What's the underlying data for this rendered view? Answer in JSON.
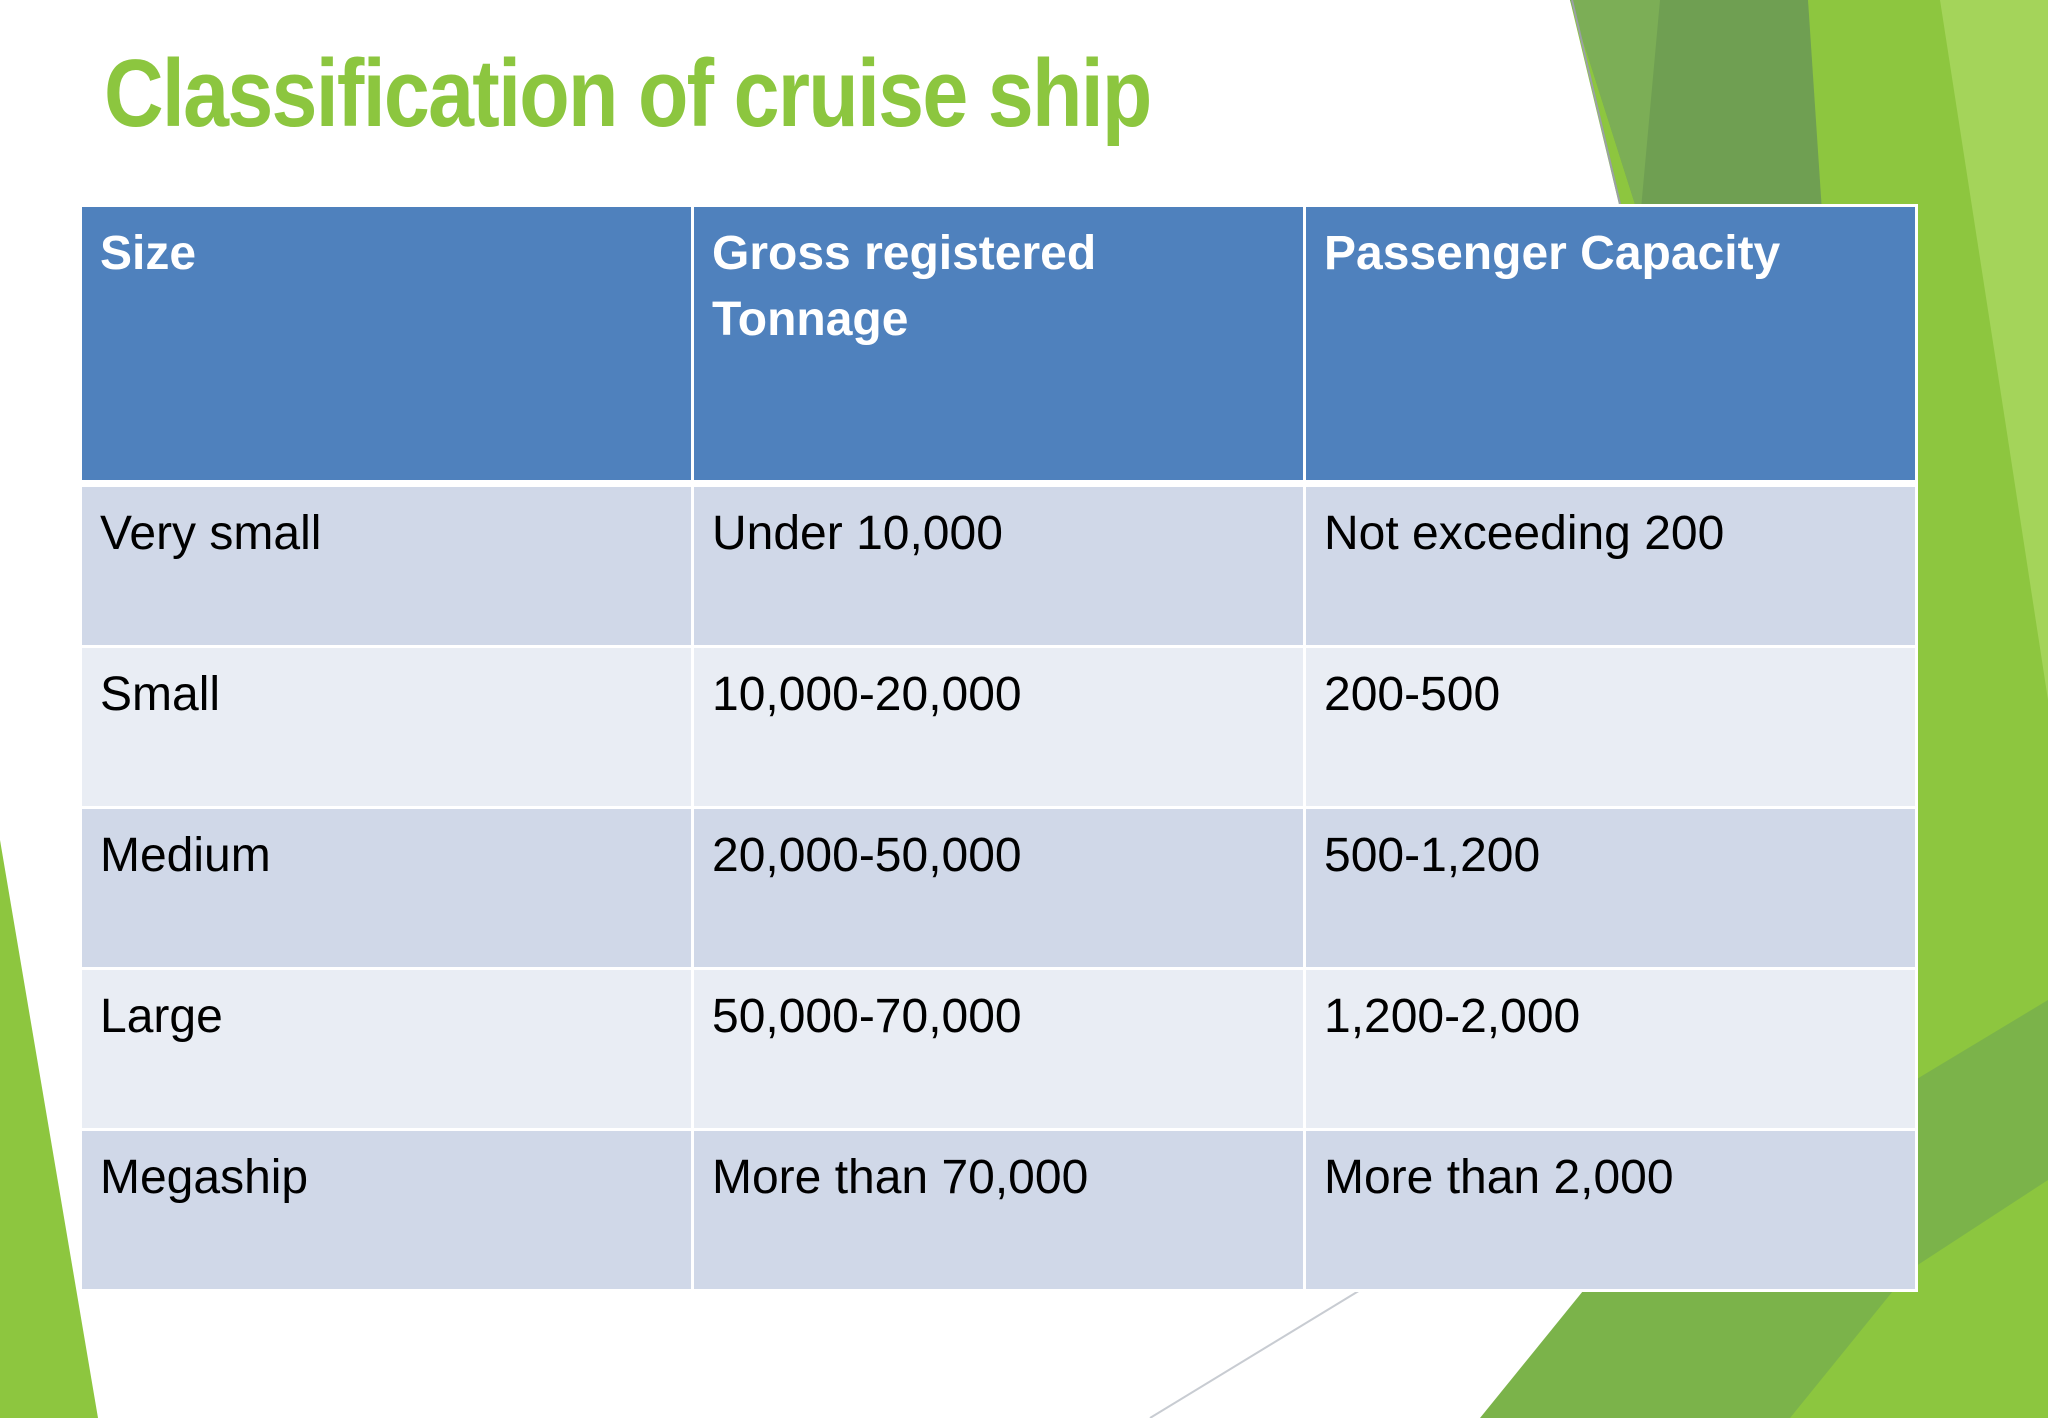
{
  "slide": {
    "title": "Classification of cruise ship"
  },
  "table": {
    "headers": [
      "Size",
      "Gross registered Tonnage",
      "Passenger Capacity"
    ],
    "rows": [
      [
        "Very small",
        "Under 10,000",
        "Not exceeding 200"
      ],
      [
        "Small",
        "10,000-20,000",
        "200-500"
      ],
      [
        "Medium",
        "20,000-50,000",
        "500-1,200"
      ],
      [
        "Large",
        "50,000-70,000",
        "1,200-2,000"
      ],
      [
        "Megaship",
        "More than 70,000",
        "More than 2,000"
      ]
    ]
  },
  "colors": {
    "title": "#8cc63f",
    "header_fill": "#4f81bd",
    "row_dark": "#d0d8e8",
    "row_light": "#e9edf4",
    "accent_green": "#8dc63f",
    "accent_green_dark": "#6b9a4f"
  }
}
